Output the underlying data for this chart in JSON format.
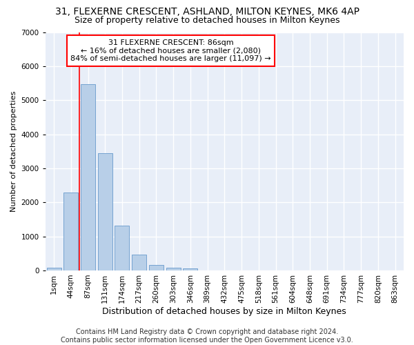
{
  "title1": "31, FLEXERNE CRESCENT, ASHLAND, MILTON KEYNES, MK6 4AP",
  "title2": "Size of property relative to detached houses in Milton Keynes",
  "xlabel": "Distribution of detached houses by size in Milton Keynes",
  "ylabel": "Number of detached properties",
  "footer1": "Contains HM Land Registry data © Crown copyright and database right 2024.",
  "footer2": "Contains public sector information licensed under the Open Government Licence v3.0.",
  "annotation_line1": "31 FLEXERNE CRESCENT: 86sqm",
  "annotation_line2": "← 16% of detached houses are smaller (2,080)",
  "annotation_line3": "84% of semi-detached houses are larger (11,097) →",
  "bar_color": "#b8cfe8",
  "bar_edge_color": "#6699cc",
  "categories": [
    "1sqm",
    "44sqm",
    "87sqm",
    "131sqm",
    "174sqm",
    "217sqm",
    "260sqm",
    "303sqm",
    "346sqm",
    "389sqm",
    "432sqm",
    "475sqm",
    "518sqm",
    "561sqm",
    "604sqm",
    "648sqm",
    "691sqm",
    "734sqm",
    "777sqm",
    "820sqm",
    "863sqm"
  ],
  "values": [
    80,
    2280,
    5480,
    3450,
    1320,
    470,
    160,
    80,
    50,
    0,
    0,
    0,
    0,
    0,
    0,
    0,
    0,
    0,
    0,
    0,
    0
  ],
  "ylim": [
    0,
    7000
  ],
  "yticks": [
    0,
    1000,
    2000,
    3000,
    4000,
    5000,
    6000,
    7000
  ],
  "red_line_bar_index": 2,
  "background_color": "#e8eef8",
  "grid_color": "#ffffff",
  "title_fontsize": 10,
  "subtitle_fontsize": 9,
  "xlabel_fontsize": 9,
  "ylabel_fontsize": 8,
  "tick_fontsize": 7.5,
  "annotation_fontsize": 8,
  "footer_fontsize": 7
}
